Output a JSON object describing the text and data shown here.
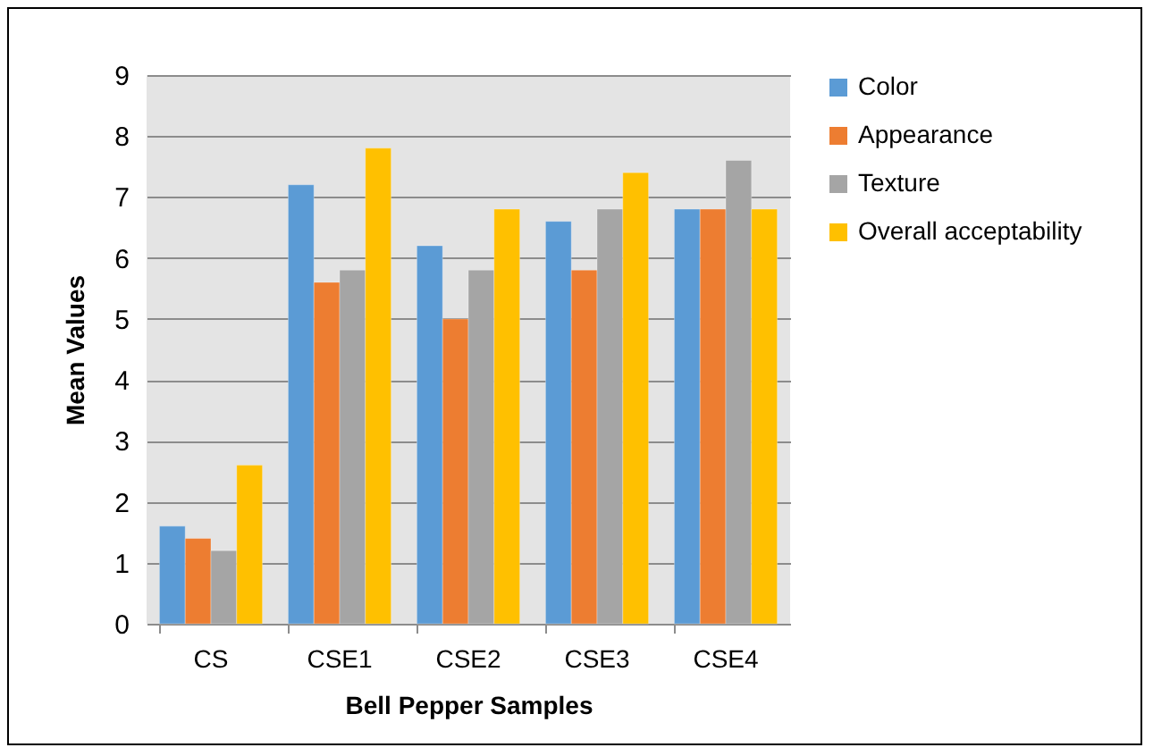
{
  "chart_data": {
    "type": "bar",
    "xlabel": "Bell Pepper Samples",
    "ylabel": "Mean Values",
    "categories": [
      "CS",
      "CSE1",
      "CSE2",
      "CSE3",
      "CSE4"
    ],
    "series": [
      {
        "name": "Color",
        "color": "#5b9bd5",
        "values": [
          1.6,
          7.2,
          6.2,
          6.6,
          6.8
        ]
      },
      {
        "name": "Appearance",
        "color": "#ed7d31",
        "values": [
          1.4,
          5.6,
          5.0,
          5.8,
          6.8
        ]
      },
      {
        "name": "Texture",
        "color": "#a5a5a5",
        "values": [
          1.2,
          5.8,
          5.8,
          6.8,
          7.6
        ]
      },
      {
        "name": "Overall acceptability",
        "color": "#ffc000",
        "values": [
          2.6,
          7.8,
          6.8,
          7.4,
          6.8
        ]
      }
    ],
    "ylim": [
      0,
      9
    ],
    "yticks": [
      0,
      1,
      2,
      3,
      4,
      5,
      6,
      7,
      8,
      9
    ],
    "grid": "y",
    "legend": "right"
  }
}
